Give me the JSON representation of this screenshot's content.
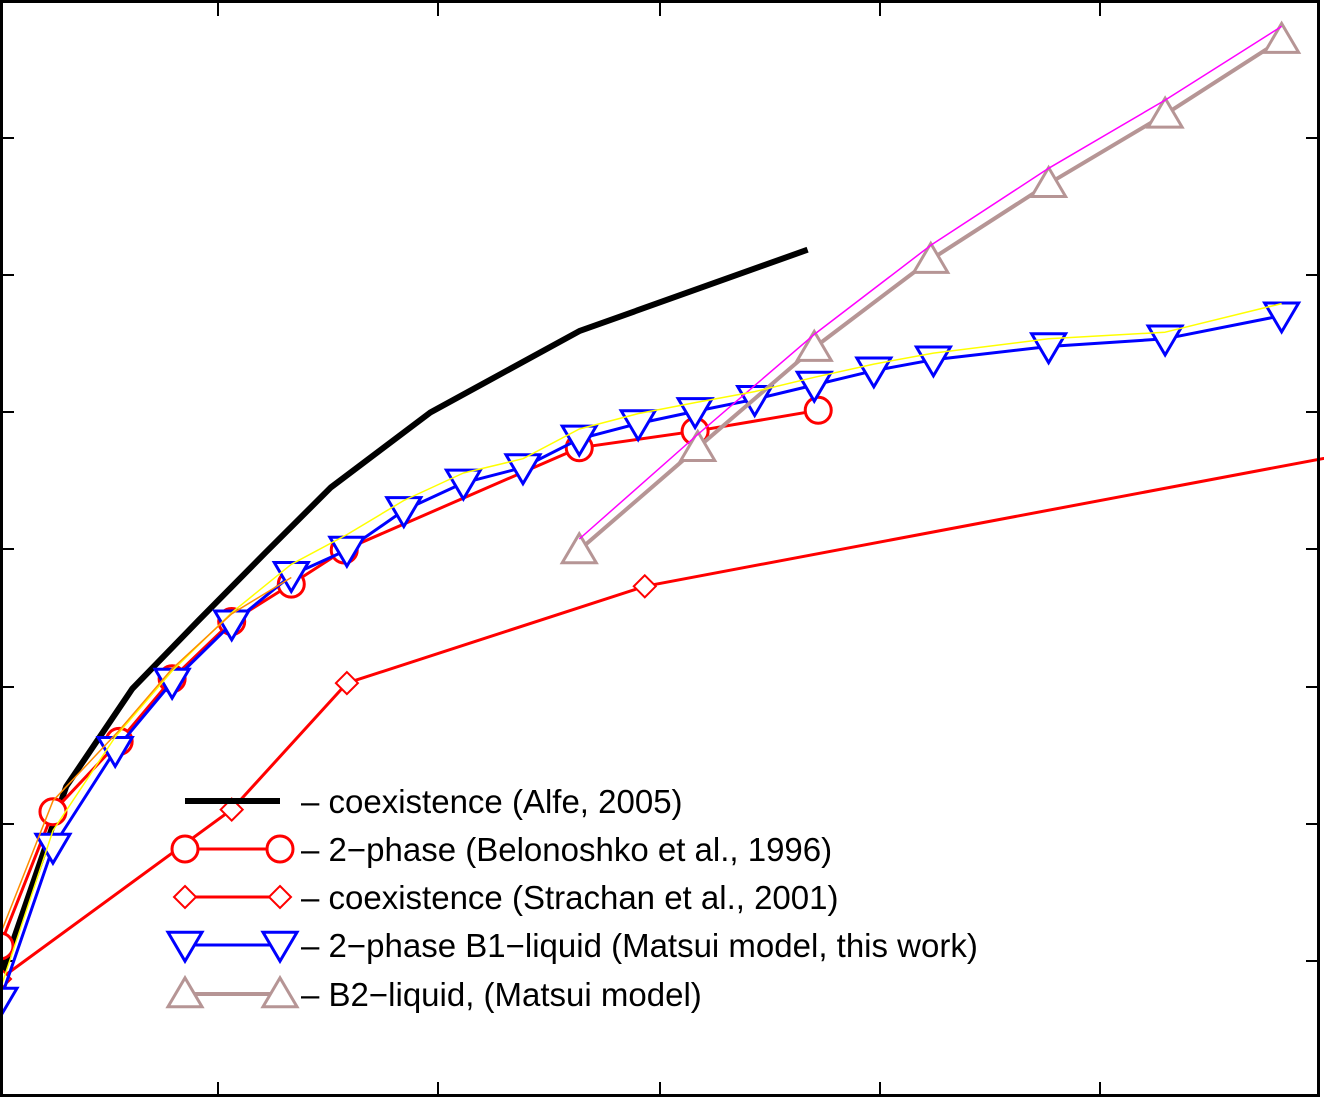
{
  "chart_data": {
    "type": "line",
    "title": "",
    "xlabel": "",
    "ylabel": "",
    "xlim": [
      0,
      1000
    ],
    "ylim": [
      0,
      1000
    ],
    "grid": false,
    "legend_position": "bottom-center",
    "series": [
      {
        "name": "– coexistence (Alfe, 2005)",
        "color": "#000000",
        "marker": "none",
        "x": [
          0,
          50,
          100,
          150,
          200,
          250,
          325,
          437.5,
          610
        ],
        "y": [
          110,
          285,
          374,
          436,
          497,
          557,
          625,
          699,
          773
        ]
      },
      {
        "name": "– 2−phase (Belonoshko et al., 1996)",
        "color": "#ff0000",
        "marker": "circle",
        "x": [
          0,
          40,
          90,
          130,
          175,
          220,
          260,
          437.5,
          525,
          618
        ],
        "y": [
          140,
          262,
          326,
          383,
          435,
          469,
          500,
          593,
          608,
          627
        ]
      },
      {
        "name": "– coexistence (Strachan et al., 2001)",
        "color": "#ff0000",
        "marker": "diamond",
        "x": [
          0,
          175,
          262,
          487,
          1100
        ],
        "y": [
          110,
          264,
          379,
          467,
          606
        ]
      },
      {
        "name": "– 2−phase B1−liquid (Matsui model, this work)",
        "color": "#0000ff",
        "marker": "triangle-down",
        "x": [
          0,
          40,
          87,
          130,
          175,
          220,
          262,
          305,
          350,
          395,
          437.5,
          482,
          525,
          570,
          615,
          660,
          705,
          792,
          880,
          968
        ],
        "y": [
          90,
          230,
          318,
          380,
          433,
          477,
          500,
          536,
          561,
          575,
          601,
          615,
          626,
          637,
          650,
          663,
          673,
          685,
          692,
          713
        ]
      },
      {
        "name": "– B2−liquid, (Matsui model)",
        "color": "#b69595",
        "marker": "triangle-up",
        "x": [
          437.5,
          527,
          615,
          703,
          792,
          880,
          968
        ],
        "y": [
          500,
          593,
          684,
          764,
          833,
          896,
          964
        ]
      },
      {
        "name": "",
        "color": "#ff00ff",
        "marker": "none",
        "x": [
          437.5,
          527,
          615,
          703,
          792,
          880,
          968
        ],
        "y": [
          510,
          605,
          696,
          777,
          847,
          909,
          976
        ]
      },
      {
        "name": "",
        "color": "#ffff00",
        "marker": "none",
        "x": [
          0,
          40,
          87,
          130,
          175,
          220,
          262,
          305,
          350,
          395,
          437.5,
          482,
          525,
          570,
          615,
          660,
          705,
          792,
          880,
          968
        ],
        "y": [
          100,
          245,
          330,
          390,
          443,
          487,
          514,
          545,
          570,
          583,
          610,
          624,
          634,
          644,
          657,
          669,
          679,
          692,
          698,
          724
        ]
      },
      {
        "name": "",
        "color": "#ff8c00",
        "marker": "none",
        "x": [
          0,
          40,
          90,
          130,
          175,
          220
        ],
        "y": [
          150,
          272,
          336,
          392,
          442,
          475
        ]
      }
    ],
    "legend_order": [
      0,
      1,
      2,
      3,
      4
    ]
  }
}
